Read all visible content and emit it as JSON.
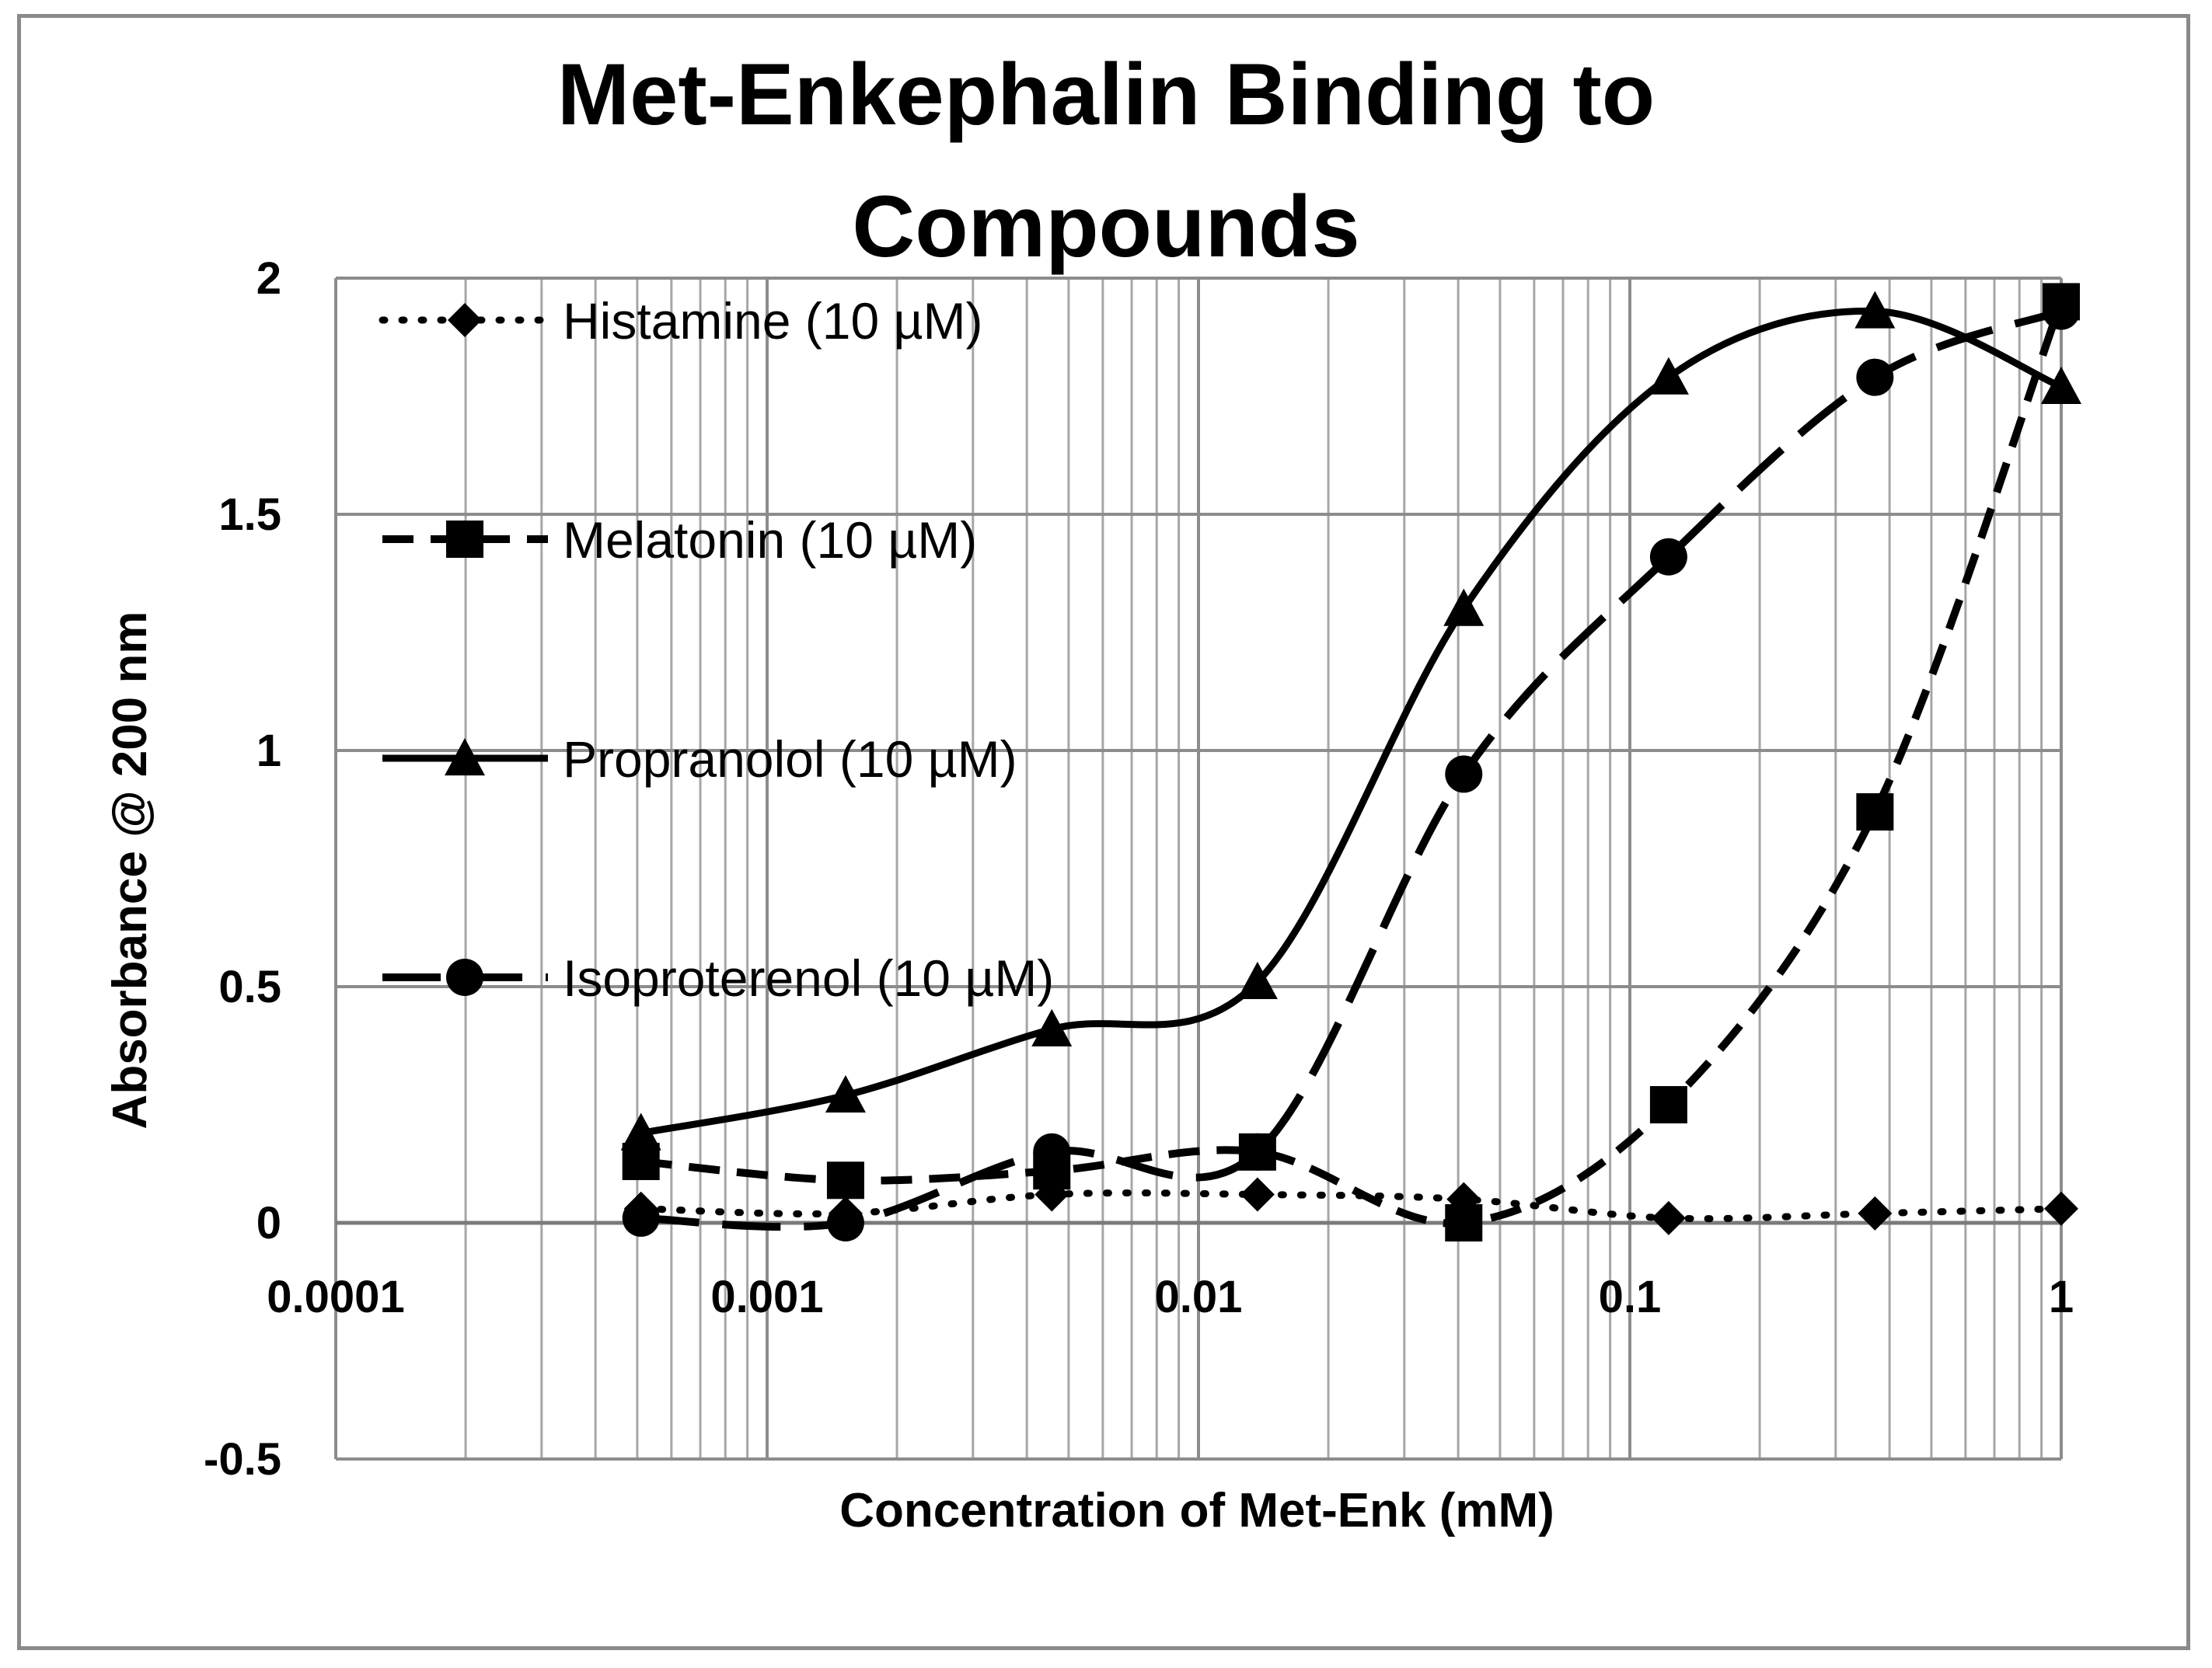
{
  "chart_data": {
    "type": "line",
    "title_lines": [
      "Met-Enkephalin Binding to",
      "Compounds"
    ],
    "xlabel": "Concentration of Met-Enk (mM)",
    "ylabel": "Absorbance @ 200 nm",
    "xscale": "log",
    "xlim": [
      0.0001,
      1
    ],
    "ylim": [
      -0.5,
      2
    ],
    "x_ticks": [
      0.0001,
      0.001,
      0.01,
      0.1,
      1
    ],
    "x_tick_labels": [
      "0.0001",
      "0.001",
      "0.01",
      "0.1",
      "1"
    ],
    "y_ticks": [
      -0.5,
      0,
      0.5,
      1,
      1.5,
      2
    ],
    "y_tick_labels": [
      "-0.5",
      "0",
      "0.5",
      "1",
      "1.5",
      "2"
    ],
    "grid": "major and minor",
    "legend_position": "top-left",
    "x": [
      0.00051,
      0.00152,
      0.00457,
      0.0137,
      0.0412,
      0.123,
      0.37,
      1
    ],
    "series": [
      {
        "name": "Histamine (10 µM)",
        "marker": "diamond",
        "line": "dotted",
        "values": [
          0.03,
          0.02,
          0.06,
          0.06,
          0.05,
          0.01,
          0.02,
          0.03
        ]
      },
      {
        "name": "Melatonin (10 µM)",
        "marker": "square",
        "line": "dashed",
        "values": [
          0.13,
          0.09,
          0.11,
          0.15,
          0.0,
          0.25,
          0.87,
          1.95
        ]
      },
      {
        "name": "Propranolol (10 µM)",
        "marker": "triangle",
        "line": "solid",
        "values": [
          0.19,
          0.27,
          0.41,
          0.51,
          1.3,
          1.79,
          1.93,
          1.77
        ]
      },
      {
        "name": "Isoproterenol (10 µM)",
        "marker": "circle",
        "line": "long-dash",
        "values": [
          0.01,
          0.0,
          0.15,
          0.15,
          0.95,
          1.41,
          1.79,
          1.93
        ]
      }
    ]
  }
}
